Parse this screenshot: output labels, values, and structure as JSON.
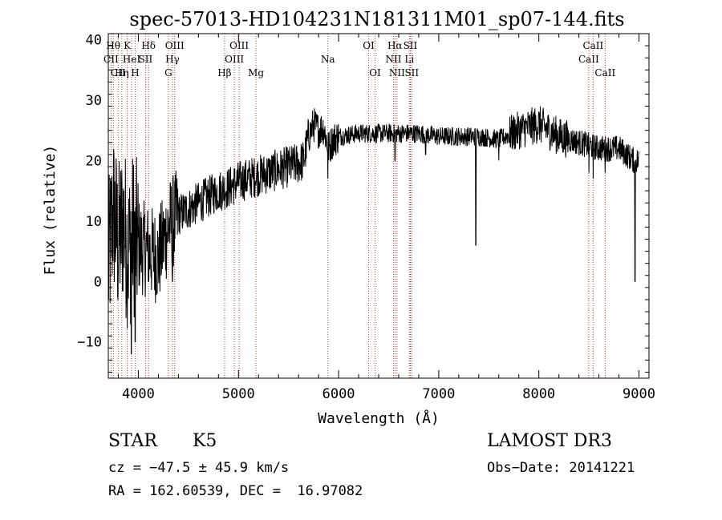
{
  "chart_data": {
    "type": "line",
    "title": "spec-57013-HD104231N181311M01_sp07-144.fits",
    "xlabel": "Wavelength (Å)",
    "ylabel": "Flux (relative)",
    "xlim": [
      3700,
      9100
    ],
    "ylim": [
      -16,
      41
    ],
    "xticks": [
      4000,
      5000,
      6000,
      7000,
      8000,
      9000
    ],
    "yticks": [
      -10,
      0,
      10,
      20,
      30,
      40
    ],
    "xtick_labels": [
      "4000",
      "5000",
      "6000",
      "7000",
      "8000",
      "9000"
    ],
    "ytick_labels": [
      "−10",
      "0",
      "10",
      "20",
      "30",
      "40"
    ],
    "series": [
      {
        "name": "flux",
        "anchors": [
          [
            3700,
            2
          ],
          [
            3750,
            12
          ],
          [
            3800,
            6
          ],
          [
            3850,
            10
          ],
          [
            3900,
            5
          ],
          [
            3950,
            8
          ],
          [
            4000,
            6
          ],
          [
            4100,
            5
          ],
          [
            4200,
            4
          ],
          [
            4300,
            9
          ],
          [
            4400,
            11
          ],
          [
            4500,
            12
          ],
          [
            4600,
            13
          ],
          [
            4700,
            14
          ],
          [
            4800,
            15
          ],
          [
            4900,
            15.5
          ],
          [
            5000,
            16.5
          ],
          [
            5100,
            17
          ],
          [
            5200,
            17.5
          ],
          [
            5300,
            18
          ],
          [
            5400,
            18.5
          ],
          [
            5500,
            19
          ],
          [
            5600,
            19.5
          ],
          [
            5650,
            20
          ],
          [
            5700,
            24
          ],
          [
            5750,
            26
          ],
          [
            5800,
            25
          ],
          [
            5850,
            25.5
          ],
          [
            5900,
            22
          ],
          [
            5950,
            23.5
          ],
          [
            6000,
            24
          ],
          [
            6200,
            24.5
          ],
          [
            6400,
            24.5
          ],
          [
            6600,
            24.5
          ],
          [
            6800,
            24.5
          ],
          [
            7000,
            24
          ],
          [
            7200,
            24
          ],
          [
            7400,
            24
          ],
          [
            7600,
            23.5
          ],
          [
            7800,
            25
          ],
          [
            8000,
            26
          ],
          [
            8200,
            24
          ],
          [
            8400,
            23
          ],
          [
            8600,
            22
          ],
          [
            8800,
            22
          ],
          [
            8950,
            20
          ],
          [
            9000,
            20
          ]
        ],
        "features": [
          [
            3930,
            -12
          ],
          [
            3968,
            -10
          ],
          [
            4101,
            0
          ],
          [
            4340,
            0
          ],
          [
            5175,
            16
          ],
          [
            5893,
            17
          ],
          [
            6563,
            20
          ],
          [
            6870,
            21
          ],
          [
            7370,
            6
          ],
          [
            7600,
            20
          ],
          [
            8500,
            18
          ],
          [
            8542,
            17
          ],
          [
            8662,
            18
          ],
          [
            8960,
            0
          ]
        ]
      }
    ],
    "lines": [
      {
        "wave": 3727,
        "row": 1,
        "label": "CII"
      },
      {
        "wave": 3750,
        "row": 0,
        "label": "Hθ"
      },
      {
        "wave": 3798,
        "row": 2,
        "label": "CII"
      },
      {
        "wave": 3835,
        "row": 2,
        "label": "Hη"
      },
      {
        "wave": 3889,
        "row": 0,
        "label": "K"
      },
      {
        "wave": 3933,
        "row": 1,
        "label": "HeI"
      },
      {
        "wave": 3968,
        "row": 2,
        "label": "H"
      },
      {
        "wave": 4072,
        "row": 1,
        "label": "SII"
      },
      {
        "wave": 4102,
        "row": 0,
        "label": "Hδ"
      },
      {
        "wave": 4300,
        "row": 2,
        "label": "G"
      },
      {
        "wave": 4341,
        "row": 1,
        "label": "Hγ"
      },
      {
        "wave": 4363,
        "row": 0,
        "label": "OIII"
      },
      {
        "wave": 4861,
        "row": 2,
        "label": "Hβ"
      },
      {
        "wave": 4959,
        "row": 1,
        "label": "OIII"
      },
      {
        "wave": 5007,
        "row": 0,
        "label": "OIII"
      },
      {
        "wave": 5175,
        "row": 2,
        "label": "Mg"
      },
      {
        "wave": 5893,
        "row": 1,
        "label": "Na"
      },
      {
        "wave": 6300,
        "row": 0,
        "label": "OI"
      },
      {
        "wave": 6364,
        "row": 2,
        "label": "OI"
      },
      {
        "wave": 6548,
        "row": 1,
        "label": "NII"
      },
      {
        "wave": 6563,
        "row": 0,
        "label": "Hα"
      },
      {
        "wave": 6583,
        "row": 2,
        "label": "NII"
      },
      {
        "wave": 6707,
        "row": 1,
        "label": "Li"
      },
      {
        "wave": 6716,
        "row": 0,
        "label": "SII"
      },
      {
        "wave": 6731,
        "row": 2,
        "label": "SII"
      },
      {
        "wave": 8498,
        "row": 1,
        "label": "CaII"
      },
      {
        "wave": 8542,
        "row": 0,
        "label": "CaII"
      },
      {
        "wave": 8662,
        "row": 2,
        "label": "CaII"
      }
    ]
  },
  "info": {
    "class_label": "STAR",
    "subclass_label": "K5",
    "survey_label": "LAMOST DR3",
    "cz_text": "cz = −47.5 ± 45.9 km/s",
    "obs_date_text": "Obs−Date: 20141221",
    "coords_text": "RA = 162.60539, DEC =  16.97082"
  }
}
